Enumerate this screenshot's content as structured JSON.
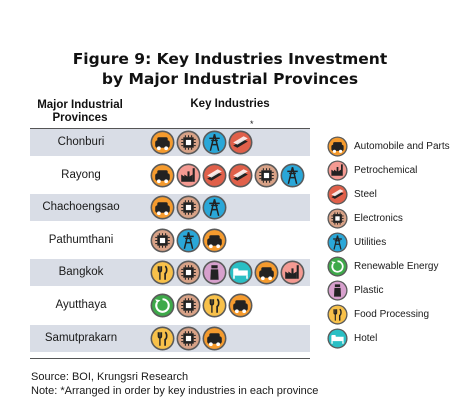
{
  "figure_title_line1": "Figure 9:  Key Industries Investment",
  "figure_title_line2": "by Major Industrial Provinces",
  "table": {
    "col_province": "Major Industrial Provinces",
    "col_industries": "Key Industries",
    "marker": "*"
  },
  "chart_data": {
    "type": "table",
    "title": "Figure 9:  Key Industries Investment by Major Industrial Provinces",
    "columns": [
      "Major Industrial Provinces",
      "Key Industries"
    ],
    "rows": [
      {
        "province": "Chonburi",
        "industries": [
          "Automobile and Parts",
          "Electronics",
          "Utilities",
          "Steel"
        ]
      },
      {
        "province": "Rayong",
        "industries": [
          "Automobile and Parts",
          "Petrochemical",
          "Steel",
          "Steel",
          "Electronics",
          "Utilities"
        ]
      },
      {
        "province": "Chachoengsao",
        "industries": [
          "Automobile and Parts",
          "Electronics",
          "Utilities"
        ]
      },
      {
        "province": "Pathumthani",
        "industries": [
          "Electronics",
          "Utilities",
          "Automobile and Parts"
        ]
      },
      {
        "province": "Bangkok",
        "industries": [
          "Food Processing",
          "Electronics",
          "Plastic",
          "Hotel",
          "Automobile and Parts",
          "Petrochemical"
        ]
      },
      {
        "province": "Ayutthaya",
        "industries": [
          "Renewable Energy",
          "Electronics",
          "Food Processing",
          "Automobile and Parts"
        ]
      },
      {
        "province": "Samutprakarn",
        "industries": [
          "Food Processing",
          "Electronics",
          "Automobile and Parts"
        ]
      }
    ],
    "legend": [
      {
        "key": "auto",
        "label": "Automobile and Parts",
        "color": "#f59b2e",
        "icon": "car-icon"
      },
      {
        "key": "petro",
        "label": "Petrochemical",
        "color": "#f49a92",
        "icon": "factory-icon"
      },
      {
        "key": "steel",
        "label": "Steel",
        "color": "#e0604a",
        "icon": "steel-beam-icon"
      },
      {
        "key": "elec",
        "label": "Electronics",
        "color": "#d8a287",
        "icon": "chip-icon"
      },
      {
        "key": "util",
        "label": "Utilities",
        "color": "#2aa7d8",
        "icon": "power-tower-icon"
      },
      {
        "key": "renew",
        "label": "Renewable Energy",
        "color": "#3ea94a",
        "icon": "recycle-icon"
      },
      {
        "key": "plastic",
        "label": "Plastic",
        "color": "#d7a0cd",
        "icon": "bottle-icon"
      },
      {
        "key": "food",
        "label": "Food Processing",
        "color": "#f8c14a",
        "icon": "fork-knife-icon"
      },
      {
        "key": "hotel",
        "label": "Hotel",
        "color": "#2abfc4",
        "icon": "bed-icon"
      }
    ]
  },
  "rows": [
    {
      "province": "Chonburi",
      "icons": [
        "auto",
        "elec",
        "util",
        "steel"
      ]
    },
    {
      "province": "Rayong",
      "icons": [
        "auto",
        "petro",
        "steel",
        "steel",
        "elec",
        "util"
      ]
    },
    {
      "province": "Chachoengsao",
      "icons": [
        "auto",
        "elec",
        "util"
      ]
    },
    {
      "province": "Pathumthani",
      "icons": [
        "elec",
        "util",
        "auto"
      ]
    },
    {
      "province": "Bangkok",
      "icons": [
        "food",
        "elec",
        "plastic",
        "hotel",
        "auto",
        "petro"
      ]
    },
    {
      "province": "Ayutthaya",
      "icons": [
        "renew",
        "elec",
        "food",
        "auto"
      ]
    },
    {
      "province": "Samutprakarn",
      "icons": [
        "food",
        "elec",
        "auto"
      ]
    }
  ],
  "source": "Source: BOI, Krungsri Research",
  "note": "Note: *Arranged in order by key industries in each province"
}
